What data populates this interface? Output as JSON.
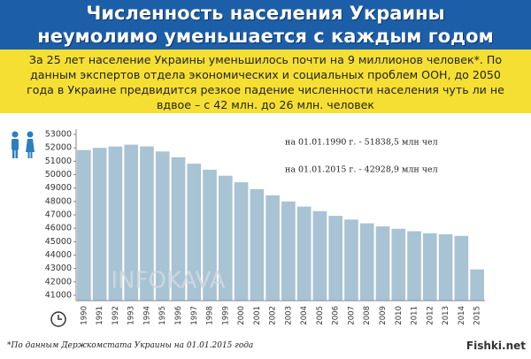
{
  "banner": {
    "title_lines": [
      "Численность населения Украины",
      "неумолимо уменьшается с каждым годом"
    ]
  },
  "intro": "За 25 лет население Украины уменьшилось почти на 9 миллионов человек*. По данным экспертов отдела экономических и социальных проблем ООН, до 2050 года в Украине предвидится резкое падение численности населения чуть ли не вдвое – с 42 млн. до 26 млн. человек",
  "chart_data": {
    "type": "bar",
    "categories": [
      "1990",
      "1991",
      "1992",
      "1993",
      "1994",
      "1995",
      "1996",
      "1997",
      "1998",
      "1999",
      "2000",
      "2001",
      "2002",
      "2003",
      "2004",
      "2005",
      "2006",
      "2007",
      "2008",
      "2009",
      "2010",
      "2011",
      "2012",
      "2013",
      "2014",
      "2015"
    ],
    "values": [
      51838.5,
      52000,
      52100,
      52240,
      52110,
      51730,
      51300,
      50820,
      50370,
      49920,
      49430,
      48920,
      48460,
      48000,
      47620,
      47280,
      46930,
      46650,
      46370,
      46140,
      45960,
      45780,
      45630,
      45550,
      45430,
      42928.9
    ],
    "color": "#a8c3d3",
    "ylim": [
      40600,
      53400
    ],
    "yticks": [
      41000,
      42000,
      43000,
      44000,
      45000,
      46000,
      47000,
      48000,
      49000,
      50000,
      51000,
      52000,
      53000
    ],
    "annotations": [
      "на 01.01.1990 г. - 51838,5 млн чел",
      "на 01.01.2015 г. - 42928,9 млн чел"
    ],
    "watermark": "INFOKAVA"
  },
  "footnote": "*По данным Держкомстата Украины на 01.01.2015 года",
  "logo": "Fishki.net"
}
